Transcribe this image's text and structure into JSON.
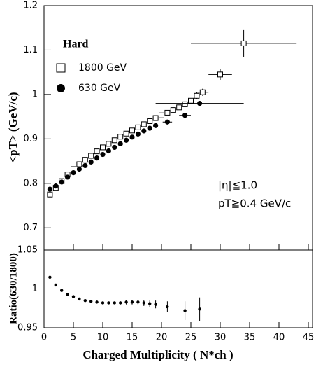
{
  "chart_data": [
    {
      "type": "scatter",
      "ylabel": "<pT> (GeV/c)",
      "annotations": [
        "Hard",
        "|η|≦1.0",
        "pT≧0.4 GeV/c"
      ],
      "xlim": [
        0,
        45
      ],
      "xticks": [
        0,
        5,
        10,
        15,
        20,
        25,
        30,
        35,
        40,
        45
      ],
      "ylim": [
        0.65,
        1.2
      ],
      "yticks": [
        0.7,
        0.8,
        0.9,
        1,
        1.1,
        1.2
      ],
      "series": [
        {
          "name": "1800 GeV",
          "color": "#000000",
          "marker": "open-square",
          "x": [
            1,
            2,
            3,
            4,
            5,
            6,
            7,
            8,
            9,
            10,
            11,
            12,
            13,
            14,
            15,
            16,
            17,
            18,
            19,
            20,
            21,
            22,
            23,
            24,
            25,
            26,
            27,
            30,
            34
          ],
          "values": [
            0.775,
            0.79,
            0.805,
            0.82,
            0.832,
            0.843,
            0.853,
            0.862,
            0.872,
            0.881,
            0.889,
            0.897,
            0.905,
            0.912,
            0.919,
            0.926,
            0.933,
            0.94,
            0.947,
            0.953,
            0.959,
            0.965,
            0.971,
            0.978,
            0.986,
            0.997,
            1.005,
            1.045,
            1.115
          ],
          "xerr": [
            0,
            0,
            0,
            0,
            0,
            0,
            0,
            0,
            0,
            0,
            0,
            0,
            0,
            0,
            0,
            0,
            0,
            0,
            0,
            0,
            0,
            0,
            0,
            0,
            0,
            0.5,
            1,
            2,
            9
          ],
          "yerr": [
            0,
            0,
            0,
            0,
            0,
            0,
            0,
            0,
            0,
            0,
            0,
            0,
            0,
            0,
            0,
            0,
            0,
            0,
            0,
            0,
            0,
            0,
            0,
            0,
            0.005,
            0.008,
            0.008,
            0.012,
            0.03
          ]
        },
        {
          "name": "630 GeV",
          "color": "#000000",
          "marker": "filled-circle",
          "x": [
            1,
            2,
            3,
            4,
            5,
            6,
            7,
            8,
            9,
            10,
            11,
            12,
            13,
            14,
            15,
            16,
            17,
            18,
            19,
            21,
            24,
            26.5
          ],
          "values": [
            0.787,
            0.794,
            0.803,
            0.814,
            0.824,
            0.832,
            0.84,
            0.848,
            0.857,
            0.865,
            0.873,
            0.881,
            0.889,
            0.897,
            0.904,
            0.911,
            0.918,
            0.924,
            0.93,
            0.938,
            0.953,
            0.98
          ],
          "xerr": [
            0,
            0,
            0,
            0,
            0,
            0,
            0,
            0,
            0,
            0,
            0,
            0,
            0,
            0,
            0,
            0,
            0,
            0,
            0,
            0.8,
            1,
            7.5
          ],
          "yerr": [
            0,
            0,
            0,
            0,
            0,
            0,
            0,
            0,
            0,
            0,
            0,
            0,
            0,
            0,
            0,
            0,
            0,
            0,
            0,
            0,
            0,
            0
          ]
        }
      ]
    },
    {
      "type": "scatter",
      "ylabel": "Ratio(630/1800)",
      "xlabel": "Charged Multiplicity ( N*ch )",
      "xlim": [
        0,
        45
      ],
      "xticks": [
        0,
        5,
        10,
        15,
        20,
        25,
        30,
        35,
        40,
        45
      ],
      "ylim": [
        0.95,
        1.05
      ],
      "yticks": [
        0.95,
        1,
        1.05
      ],
      "hline": 1,
      "series": [
        {
          "name": "630/1800",
          "color": "#000000",
          "marker": "small-circle",
          "x": [
            1,
            2,
            3,
            4,
            5,
            6,
            7,
            8,
            9,
            10,
            11,
            12,
            13,
            14,
            15,
            16,
            17,
            18,
            19,
            21,
            24,
            26.5
          ],
          "values": [
            1.015,
            1.005,
            0.998,
            0.993,
            0.99,
            0.987,
            0.985,
            0.984,
            0.983,
            0.982,
            0.982,
            0.982,
            0.982,
            0.983,
            0.983,
            0.983,
            0.982,
            0.981,
            0.98,
            0.977,
            0.972,
            0.974
          ],
          "yerr": [
            0,
            0,
            0,
            0,
            0,
            0,
            0,
            0,
            0,
            0,
            0,
            0,
            0.002,
            0.003,
            0.003,
            0.003,
            0.004,
            0.004,
            0.005,
            0.007,
            0.012,
            0.015
          ]
        }
      ]
    }
  ]
}
